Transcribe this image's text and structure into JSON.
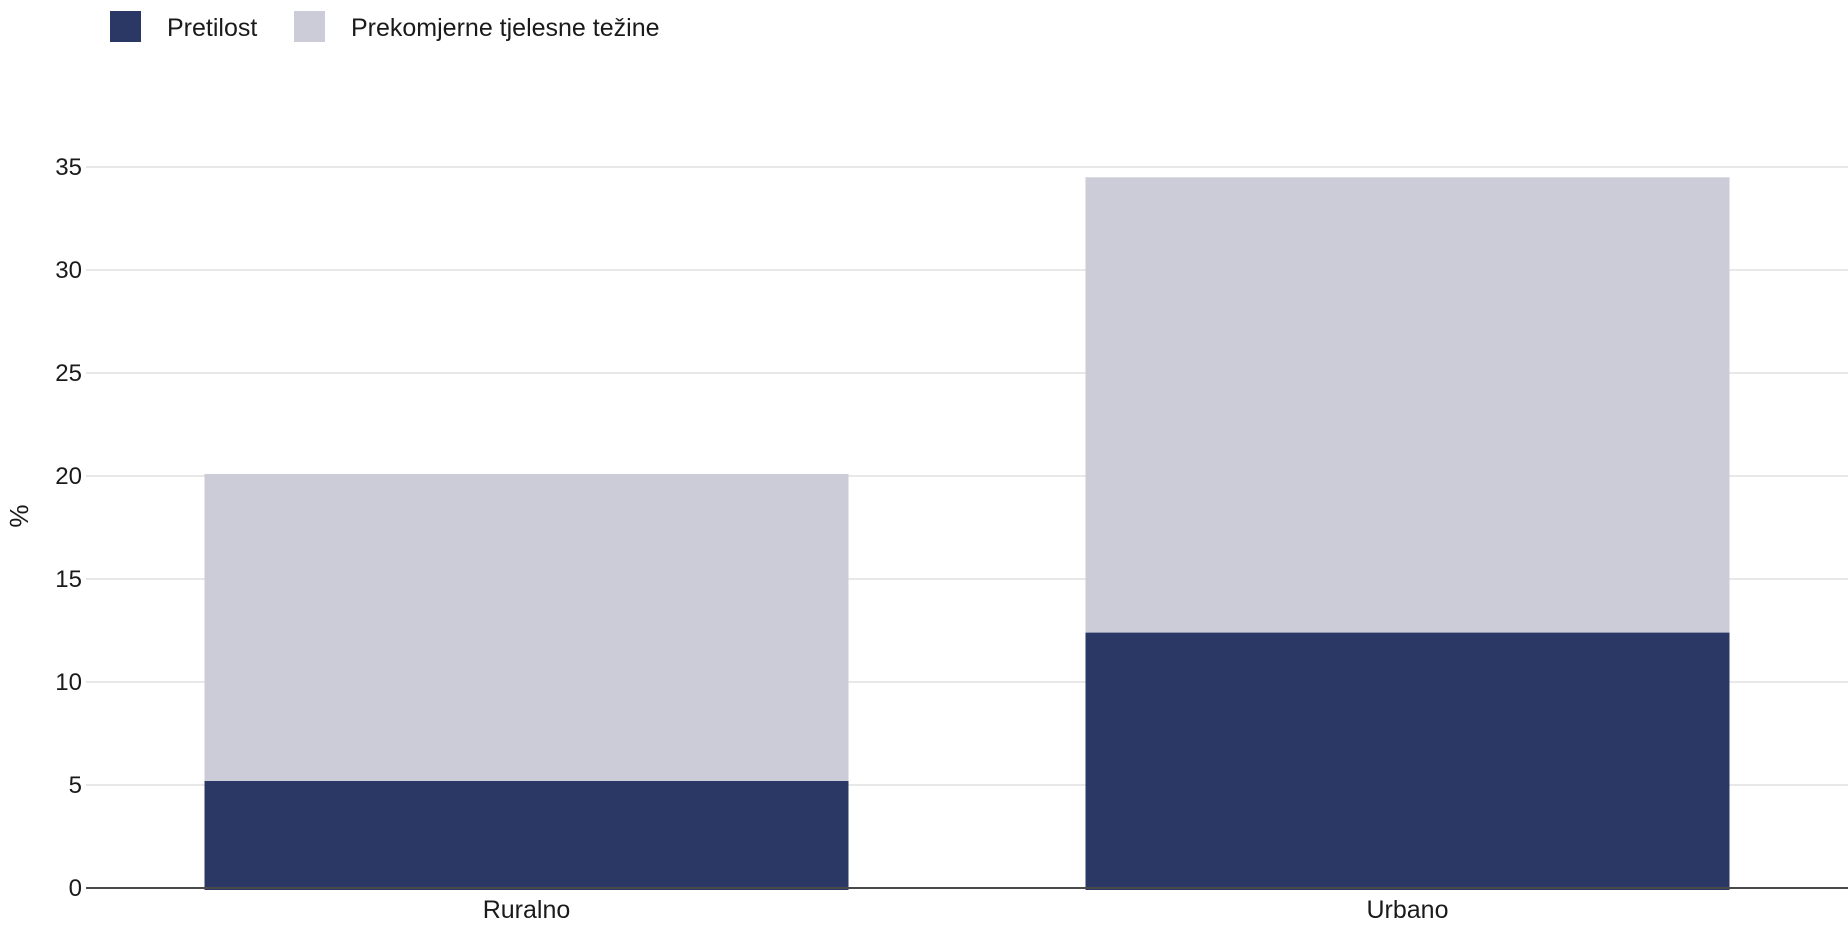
{
  "chart_data": {
    "type": "bar",
    "stacked": true,
    "categories": [
      "Ruralno",
      "Urbano"
    ],
    "series": [
      {
        "name": "Pretilost",
        "color": "#2b3865",
        "values": [
          5.2,
          12.4
        ]
      },
      {
        "name": "Prekomjerne tjelesne težine",
        "color": "#cbccd8",
        "values": [
          14.9,
          22.1
        ]
      }
    ],
    "title": "",
    "xlabel": "",
    "ylabel": "%",
    "ylim": [
      0,
      35
    ],
    "yticks": [
      0,
      5,
      10,
      15,
      20,
      25,
      30,
      35
    ],
    "grid": true,
    "legend_position": "top-left"
  }
}
